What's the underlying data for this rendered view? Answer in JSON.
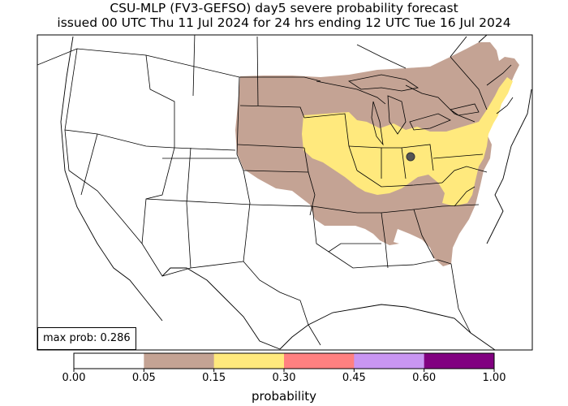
{
  "title": {
    "line1": "CSU-MLP (FV3-GEFSO) day5 severe probability forecast",
    "line2": "issued 00 UTC Thu 11 Jul 2024 for 24 hrs ending 12 UTC Tue 16 Jul 2024"
  },
  "max_prob": "max prob: 0.286",
  "colorbar": {
    "label": "probability",
    "ticks": [
      "0.00",
      "0.05",
      "0.15",
      "0.30",
      "0.45",
      "0.60",
      "1.00"
    ],
    "colors": [
      "#ffffff",
      "#c4a394",
      "#ffe97d",
      "#ff8080",
      "#c996f2",
      "#810080"
    ]
  }
}
